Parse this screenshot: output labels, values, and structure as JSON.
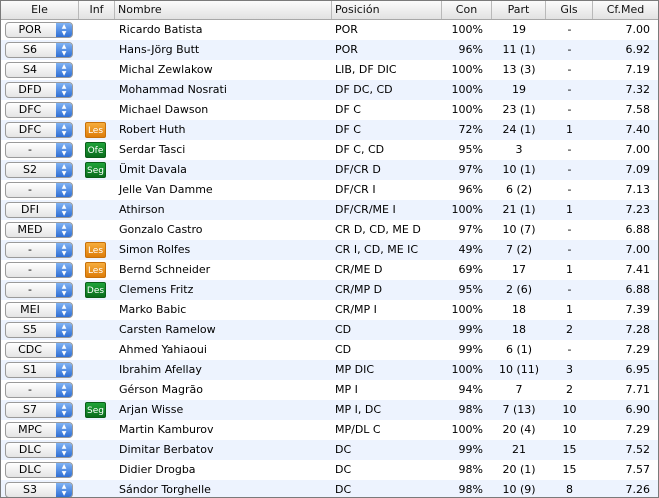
{
  "columns": [
    "Ele",
    "Inf",
    "Nombre",
    "Posición",
    "Con",
    "Part",
    "Gls",
    "Cf.Med"
  ],
  "rows": [
    {
      "ele": "POR",
      "inf": "",
      "inf_type": "",
      "nombre": "Ricardo Batista",
      "posicion": "POR",
      "con": "100%",
      "part": "19",
      "gls": "-",
      "cfmed": "7.00"
    },
    {
      "ele": "S6",
      "inf": "",
      "inf_type": "",
      "nombre": "Hans-Jörg Butt",
      "posicion": "POR",
      "con": "96%",
      "part": "11 (1)",
      "gls": "-",
      "cfmed": "6.92"
    },
    {
      "ele": "S4",
      "inf": "",
      "inf_type": "",
      "nombre": "Michal Zewlakow",
      "posicion": "LIB, DF DIC",
      "con": "100%",
      "part": "13 (3)",
      "gls": "-",
      "cfmed": "7.19"
    },
    {
      "ele": "DFD",
      "inf": "",
      "inf_type": "",
      "nombre": "Mohammad Nosrati",
      "posicion": "DF DC, CD",
      "con": "100%",
      "part": "19",
      "gls": "-",
      "cfmed": "7.32"
    },
    {
      "ele": "DFC",
      "inf": "",
      "inf_type": "",
      "nombre": "Michael Dawson",
      "posicion": "DF C",
      "con": "100%",
      "part": "23 (1)",
      "gls": "-",
      "cfmed": "7.58"
    },
    {
      "ele": "DFC",
      "inf": "Les",
      "inf_type": "les",
      "nombre": "Robert Huth",
      "posicion": "DF C",
      "con": "72%",
      "part": "24 (1)",
      "gls": "1",
      "cfmed": "7.40"
    },
    {
      "ele": "-",
      "inf": "Ofe",
      "inf_type": "green",
      "nombre": "Serdar Tasci",
      "posicion": "DF C, CD",
      "con": "95%",
      "part": "3",
      "gls": "-",
      "cfmed": "7.00"
    },
    {
      "ele": "S2",
      "inf": "Seg",
      "inf_type": "green",
      "nombre": "Ümit Davala",
      "posicion": "DF/CR D",
      "con": "97%",
      "part": "10 (1)",
      "gls": "-",
      "cfmed": "7.09"
    },
    {
      "ele": "-",
      "inf": "",
      "inf_type": "",
      "nombre": "Jelle Van Damme",
      "posicion": "DF/CR I",
      "con": "96%",
      "part": "6 (2)",
      "gls": "-",
      "cfmed": "7.13"
    },
    {
      "ele": "DFI",
      "inf": "",
      "inf_type": "",
      "nombre": "Athirson",
      "posicion": "DF/CR/ME I",
      "con": "100%",
      "part": "21 (1)",
      "gls": "1",
      "cfmed": "7.23"
    },
    {
      "ele": "MED",
      "inf": "",
      "inf_type": "",
      "nombre": "Gonzalo Castro",
      "posicion": "CR D, CD, ME D",
      "con": "97%",
      "part": "10 (7)",
      "gls": "-",
      "cfmed": "6.88"
    },
    {
      "ele": "-",
      "inf": "Les",
      "inf_type": "les",
      "nombre": "Simon Rolfes",
      "posicion": "CR I, CD, ME IC",
      "con": "49%",
      "part": "7 (2)",
      "gls": "-",
      "cfmed": "7.00"
    },
    {
      "ele": "-",
      "inf": "Les",
      "inf_type": "les",
      "nombre": "Bernd Schneider",
      "posicion": "CR/ME D",
      "con": "69%",
      "part": "17",
      "gls": "1",
      "cfmed": "7.41"
    },
    {
      "ele": "-",
      "inf": "Des",
      "inf_type": "green",
      "nombre": "Clemens Fritz",
      "posicion": "CR/MP D",
      "con": "95%",
      "part": "2 (6)",
      "gls": "-",
      "cfmed": "6.88"
    },
    {
      "ele": "MEI",
      "inf": "",
      "inf_type": "",
      "nombre": "Marko Babic",
      "posicion": "CR/MP I",
      "con": "100%",
      "part": "18",
      "gls": "1",
      "cfmed": "7.39"
    },
    {
      "ele": "S5",
      "inf": "",
      "inf_type": "",
      "nombre": "Carsten Ramelow",
      "posicion": "CD",
      "con": "99%",
      "part": "18",
      "gls": "2",
      "cfmed": "7.28"
    },
    {
      "ele": "CDC",
      "inf": "",
      "inf_type": "",
      "nombre": "Ahmed Yahiaoui",
      "posicion": "CD",
      "con": "99%",
      "part": "6 (1)",
      "gls": "-",
      "cfmed": "7.29"
    },
    {
      "ele": "S1",
      "inf": "",
      "inf_type": "",
      "nombre": "Ibrahim Afellay",
      "posicion": "MP DIC",
      "con": "100%",
      "part": "10 (11)",
      "gls": "3",
      "cfmed": "6.95"
    },
    {
      "ele": "-",
      "inf": "",
      "inf_type": "",
      "nombre": "Gérson Magrão",
      "posicion": "MP I",
      "con": "94%",
      "part": "7",
      "gls": "2",
      "cfmed": "7.71"
    },
    {
      "ele": "S7",
      "inf": "Seg",
      "inf_type": "green",
      "nombre": "Arjan Wisse",
      "posicion": "MP I, DC",
      "con": "98%",
      "part": "7 (13)",
      "gls": "10",
      "cfmed": "6.90"
    },
    {
      "ele": "MPC",
      "inf": "",
      "inf_type": "",
      "nombre": "Martin Kamburov",
      "posicion": "MP/DL C",
      "con": "100%",
      "part": "20 (4)",
      "gls": "10",
      "cfmed": "7.29"
    },
    {
      "ele": "DLC",
      "inf": "",
      "inf_type": "",
      "nombre": "Dimitar Berbatov",
      "posicion": "DC",
      "con": "99%",
      "part": "21",
      "gls": "15",
      "cfmed": "7.52"
    },
    {
      "ele": "DLC",
      "inf": "",
      "inf_type": "",
      "nombre": "Didier Drogba",
      "posicion": "DC",
      "con": "98%",
      "part": "20 (1)",
      "gls": "15",
      "cfmed": "7.57"
    },
    {
      "ele": "S3",
      "inf": "",
      "inf_type": "",
      "nombre": "Sándor Torghelle",
      "posicion": "DC",
      "con": "98%",
      "part": "10 (9)",
      "gls": "8",
      "cfmed": "7.26"
    }
  ]
}
